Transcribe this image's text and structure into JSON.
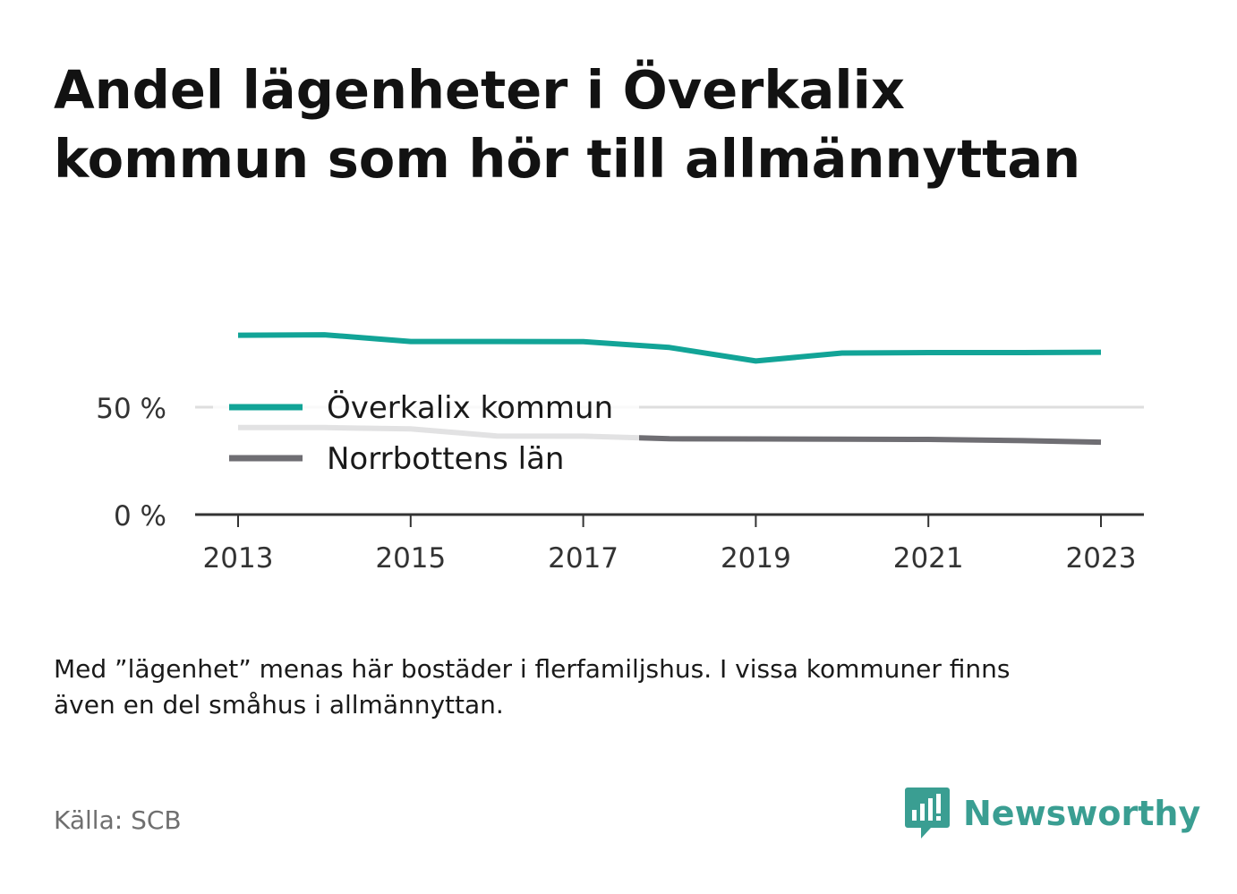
{
  "title_line1": "Andel lägenheter i Överkalix",
  "title_line2": "kommun som hör till allmännyttan",
  "note_line1": "Med ”lägenhet” menas här bostäder i flerfamiljshus. I vissa kommuner finns",
  "note_line2": "även en del småhus i allmännyttan.",
  "source": "Källa: SCB",
  "brand": {
    "name": "Newsworthy",
    "icon": "newsworthy-logo-icon",
    "color": "#3a9e92"
  },
  "chart_data": {
    "type": "line",
    "x": [
      2013,
      2014,
      2015,
      2016,
      2017,
      2018,
      2019,
      2020,
      2021,
      2022,
      2023
    ],
    "x_tick_labels": [
      "2013",
      "2015",
      "2017",
      "2019",
      "2021",
      "2023"
    ],
    "x_tick_values": [
      2013,
      2015,
      2017,
      2019,
      2021,
      2023
    ],
    "y_tick_labels": [
      "0 %",
      "50 %"
    ],
    "y_tick_values": [
      0,
      50
    ],
    "ylim": [
      0,
      100
    ],
    "grid": true,
    "legend_position": "inside-left",
    "series": [
      {
        "name": "Överkalix kommun",
        "color": "#12a497",
        "values": [
          83.5,
          83.7,
          80.6,
          80.6,
          80.5,
          77.8,
          71.5,
          75.2,
          75.4,
          75.4,
          75.6
        ]
      },
      {
        "name": "Norrbottens län",
        "color": "#6f6e73",
        "values": [
          40.5,
          40.5,
          39.9,
          36.6,
          36.5,
          35.3,
          35.2,
          35.1,
          35.0,
          34.5,
          33.7
        ]
      }
    ]
  }
}
